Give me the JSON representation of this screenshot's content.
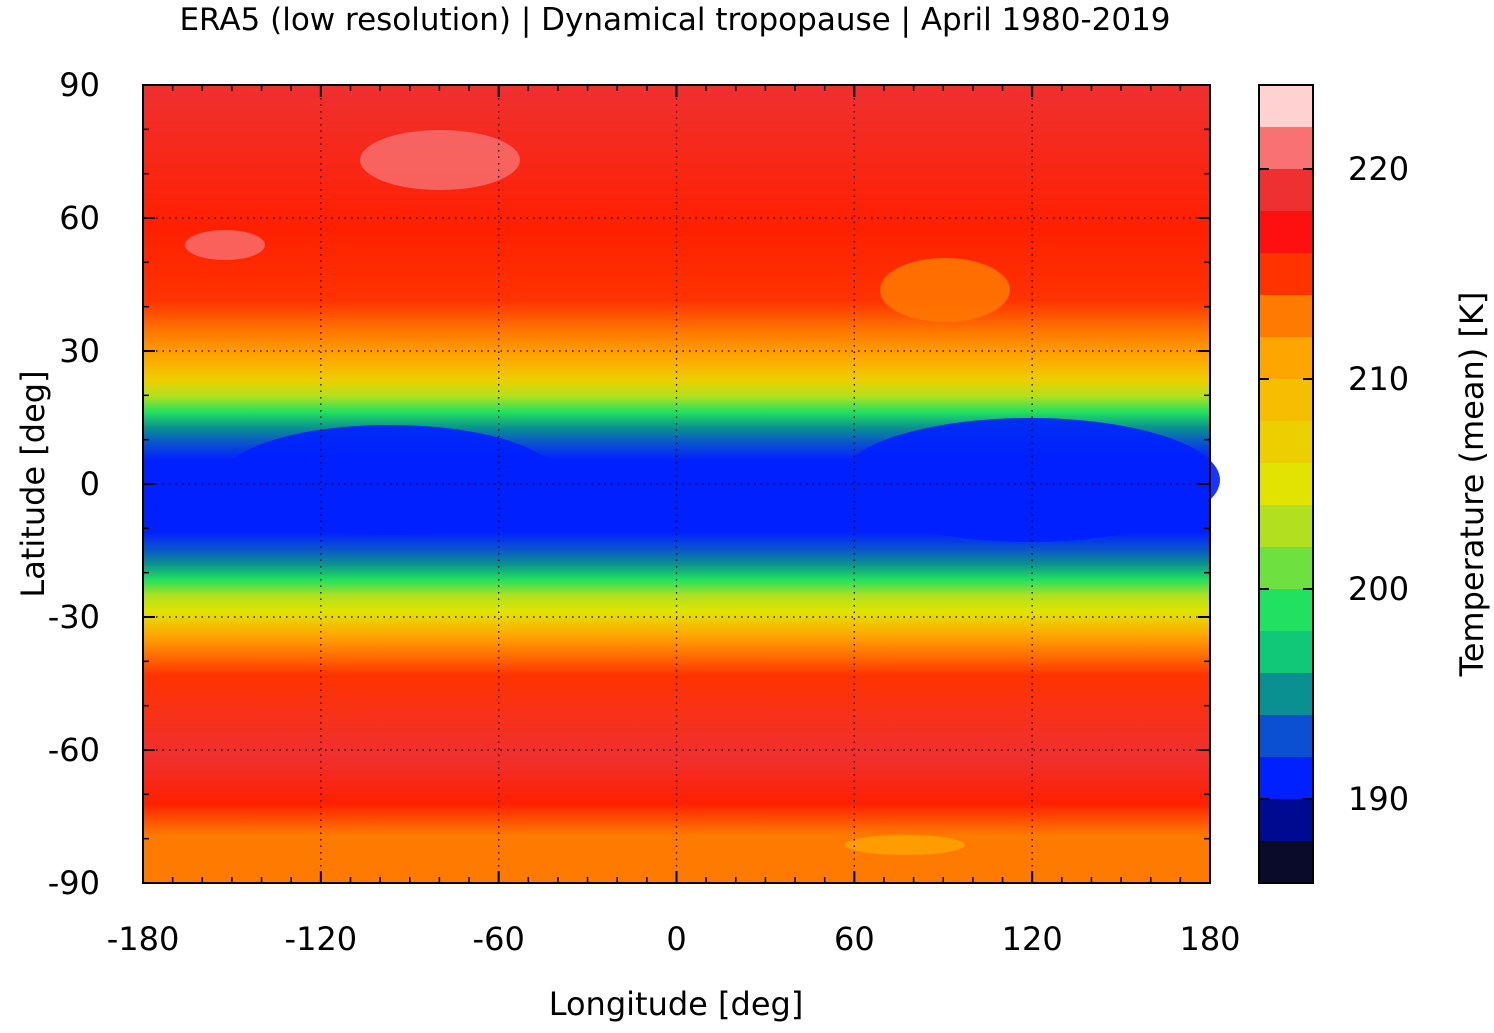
{
  "chart_data": {
    "type": "heatmap",
    "title": "ERA5 (low resolution) | Dynamical tropopause | April 1980-2019",
    "xlabel": "Longitude [deg]",
    "ylabel": "Latitude [deg]",
    "xlim": [
      -180,
      180
    ],
    "ylim": [
      -90,
      90
    ],
    "xticks": [
      -180,
      -120,
      -60,
      0,
      60,
      120,
      180
    ],
    "yticks": [
      90,
      60,
      30,
      0,
      -30,
      -60,
      -90
    ],
    "grid": true,
    "colorbar": {
      "label": "Temperature (mean) [K]",
      "range": [
        186,
        224
      ],
      "ticks": [
        220,
        210,
        200,
        190
      ],
      "levels_top_to_bottom": [
        "#ffd1d1",
        "#f87272",
        "#ef3030",
        "#ff1010",
        "#ff3300",
        "#ff7a00",
        "#ffa500",
        "#f6be00",
        "#eccf00",
        "#e2e400",
        "#b2e020",
        "#6ee040",
        "#22e060",
        "#10c878",
        "#0a9090",
        "#0a50d0",
        "#0020ff",
        "#000a90",
        "#0a0a2a"
      ]
    },
    "field_description": [
      {
        "lat_range": [
          -15,
          15
        ],
        "temperature_K": 190
      },
      {
        "lat_range": [
          20,
          32
        ],
        "temperature_K": 208
      },
      {
        "lat_range": [
          -32,
          -20
        ],
        "temperature_K": 206
      },
      {
        "lat_range": [
          35,
          90
        ],
        "temperature_K": 217
      },
      {
        "lat_range": [
          -90,
          -35
        ],
        "temperature_K": 215
      }
    ]
  }
}
